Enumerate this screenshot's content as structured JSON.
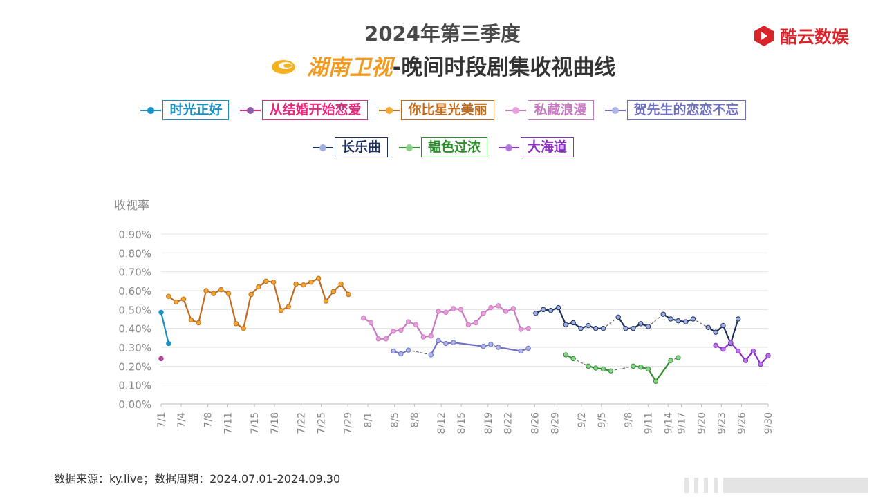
{
  "header": {
    "title_line1": "2024年第三季度",
    "channel": "湖南卫视",
    "title_suffix": "-晚间时段剧集收视曲线",
    "brand": "酷云数娱"
  },
  "footer": {
    "source": "数据来源：ky.live；数据周期：2024.07.01-2024.09.30"
  },
  "chart_data": {
    "type": "line",
    "ylabel": "收视率",
    "ylim": [
      0,
      0.9
    ],
    "yticks": [
      "0.00%",
      "0.10%",
      "0.20%",
      "0.30%",
      "0.40%",
      "0.50%",
      "0.60%",
      "0.70%",
      "0.80%",
      "0.90%"
    ],
    "xticks": [
      "7/1",
      "7/4",
      "7/8",
      "7/11",
      "7/15",
      "7/18",
      "7/22",
      "7/25",
      "7/29",
      "8/1",
      "8/5",
      "8/8",
      "8/12",
      "8/15",
      "8/19",
      "8/22",
      "8/26",
      "8/29",
      "9/2",
      "9/5",
      "9/8",
      "9/11",
      "9/14",
      "9/17",
      "9/20",
      "9/23",
      "9/26",
      "9/30"
    ],
    "grid": true,
    "legend_placement": "top-center",
    "series": [
      {
        "name": "时光正好",
        "color": "#1a8fc2",
        "points": [
          [
            0,
            0.485
          ],
          [
            1,
            0.32
          ]
        ]
      },
      {
        "name": "从结婚开始恋爱",
        "color": "#e8267a",
        "marker": "#8e5aa8",
        "points": [
          [
            0,
            0.24
          ]
        ]
      },
      {
        "name": "你比星光美丽",
        "color": "#c06a1c",
        "marker": "#f0a830",
        "points": [
          [
            1,
            0.57
          ],
          [
            2,
            0.54
          ],
          [
            3,
            0.555
          ],
          [
            4,
            0.445
          ],
          [
            5,
            0.43
          ],
          [
            6,
            0.6
          ],
          [
            7,
            0.585
          ],
          [
            8,
            0.605
          ],
          [
            9,
            0.585
          ],
          [
            10,
            0.425
          ],
          [
            11,
            0.4
          ],
          [
            12,
            0.58
          ],
          [
            13,
            0.62
          ],
          [
            14,
            0.65
          ],
          [
            15,
            0.645
          ],
          [
            16,
            0.495
          ],
          [
            17,
            0.515
          ],
          [
            18,
            0.635
          ],
          [
            19,
            0.63
          ],
          [
            20,
            0.645
          ],
          [
            21,
            0.665
          ],
          [
            22,
            0.545
          ],
          [
            23,
            0.595
          ],
          [
            24,
            0.635
          ],
          [
            25,
            0.58
          ]
        ]
      },
      {
        "name": "私藏浪漫",
        "color": "#c77ac0",
        "marker": "#e8a0d8",
        "points": [
          [
            27,
            0.455
          ],
          [
            28,
            0.43
          ],
          [
            29,
            0.345
          ],
          [
            30,
            0.345
          ],
          [
            31,
            0.385
          ],
          [
            32,
            0.39
          ],
          [
            33,
            0.435
          ],
          [
            34,
            0.42
          ],
          [
            35,
            0.355
          ],
          [
            36,
            0.36
          ],
          [
            37,
            0.49
          ],
          [
            38,
            0.485
          ],
          [
            39,
            0.505
          ],
          [
            40,
            0.5
          ],
          [
            41,
            0.42
          ],
          [
            42,
            0.43
          ],
          [
            43,
            0.48
          ],
          [
            44,
            0.51
          ],
          [
            45,
            0.52
          ],
          [
            46,
            0.49
          ],
          [
            47,
            0.505
          ],
          [
            48,
            0.395
          ],
          [
            49,
            0.4
          ]
        ]
      },
      {
        "name": "贺先生的恋恋不忘",
        "color": "#6f6fc5",
        "marker": "#aeb5e8",
        "points": [
          [
            31,
            0.28
          ],
          [
            32,
            0.265
          ],
          [
            33,
            0.285
          ],
          [
            36,
            0.26
          ],
          [
            37,
            0.335
          ],
          [
            38,
            0.32
          ],
          [
            39,
            0.325
          ],
          [
            43,
            0.305
          ],
          [
            44,
            0.315
          ],
          [
            45,
            0.3
          ],
          [
            48,
            0.28
          ],
          [
            49,
            0.295
          ]
        ],
        "dashed_after": [
          [
            2,
            3
          ],
          [
            8,
            9
          ]
        ]
      },
      {
        "name": "长乐曲",
        "color": "#1c2f5c",
        "marker": "#a0b0e0",
        "points": [
          [
            50,
            0.48
          ],
          [
            51,
            0.5
          ],
          [
            52,
            0.495
          ],
          [
            53,
            0.51
          ],
          [
            54,
            0.42
          ],
          [
            55,
            0.43
          ],
          [
            56,
            0.4
          ],
          [
            57,
            0.415
          ],
          [
            58,
            0.4
          ],
          [
            59,
            0.4
          ],
          [
            61,
            0.46
          ],
          [
            62,
            0.4
          ],
          [
            63,
            0.4
          ],
          [
            64,
            0.425
          ],
          [
            65,
            0.41
          ],
          [
            67,
            0.475
          ],
          [
            68,
            0.45
          ],
          [
            69,
            0.44
          ],
          [
            70,
            0.435
          ],
          [
            71,
            0.45
          ],
          [
            73,
            0.405
          ],
          [
            74,
            0.38
          ],
          [
            75,
            0.415
          ],
          [
            76,
            0.32
          ],
          [
            77,
            0.45
          ]
        ],
        "dashed_after": [
          [
            9,
            10
          ],
          [
            14,
            15
          ],
          [
            19,
            20
          ]
        ]
      },
      {
        "name": "韫色过浓",
        "color": "#2c8f2c",
        "marker": "#8cd08c",
        "points": [
          [
            54,
            0.26
          ],
          [
            55,
            0.24
          ],
          [
            57,
            0.2
          ],
          [
            58,
            0.19
          ],
          [
            59,
            0.185
          ],
          [
            60,
            0.175
          ],
          [
            63,
            0.2
          ],
          [
            64,
            0.195
          ],
          [
            65,
            0.185
          ],
          [
            66,
            0.12
          ],
          [
            68,
            0.23
          ],
          [
            69,
            0.245
          ]
        ],
        "dashed_after": [
          [
            1,
            2
          ],
          [
            5,
            6
          ],
          [
            10,
            11
          ]
        ]
      },
      {
        "name": "大海道",
        "color": "#8a2ec4",
        "marker": "#b47ae0",
        "points": [
          [
            74,
            0.31
          ],
          [
            75,
            0.29
          ],
          [
            76,
            0.325
          ],
          [
            77,
            0.28
          ],
          [
            78,
            0.23
          ],
          [
            79,
            0.28
          ],
          [
            80,
            0.21
          ],
          [
            81,
            0.255
          ]
        ]
      }
    ]
  }
}
